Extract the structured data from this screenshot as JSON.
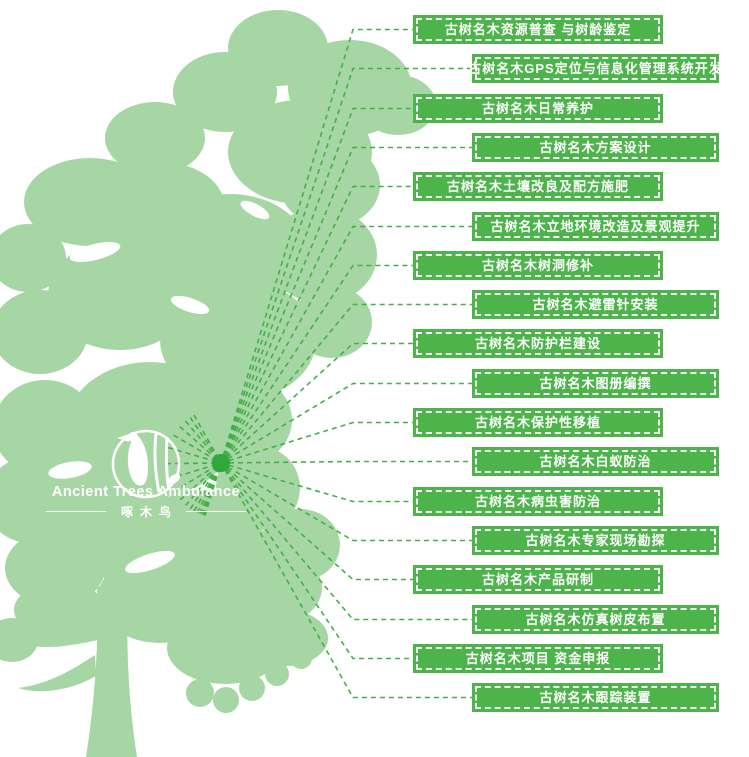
{
  "diagram": {
    "logo": {
      "title": "Ancient Trees Ambulance",
      "subtitle": "啄木鸟"
    },
    "services": [
      {
        "label": "古树名木资源普查 与树龄鉴定"
      },
      {
        "label": "古树名木GPS定位与信息化管理系统开发"
      },
      {
        "label": "古树名木日常养护"
      },
      {
        "label": "古树名木方案设计"
      },
      {
        "label": "古树名木土壤改良及配方施肥"
      },
      {
        "label": "古树名木立地环境改造及景观提升"
      },
      {
        "label": "古树名木树洞修补"
      },
      {
        "label": "古树名木避雷针安装"
      },
      {
        "label": "古树名木防护栏建设"
      },
      {
        "label": "古树名木图册编撰"
      },
      {
        "label": "古树名木保护性移植"
      },
      {
        "label": "古树名木白蚁防治"
      },
      {
        "label": "古树名木病虫害防治"
      },
      {
        "label": "古树名木专家现场勘探"
      },
      {
        "label": "古树名木产品研制"
      },
      {
        "label": "古树名木仿真树皮布置"
      },
      {
        "label": "古树名木项目 资金申报"
      },
      {
        "label": "古树名木跟踪装置"
      }
    ]
  },
  "colors": {
    "tree_silhouette": "#a7d6a5",
    "service_box": "#4cb44a",
    "connector_line": "#43b046",
    "hub_dot": "#2fa83c",
    "box_text": "#ffffff",
    "logo_text": "#ffffff"
  }
}
